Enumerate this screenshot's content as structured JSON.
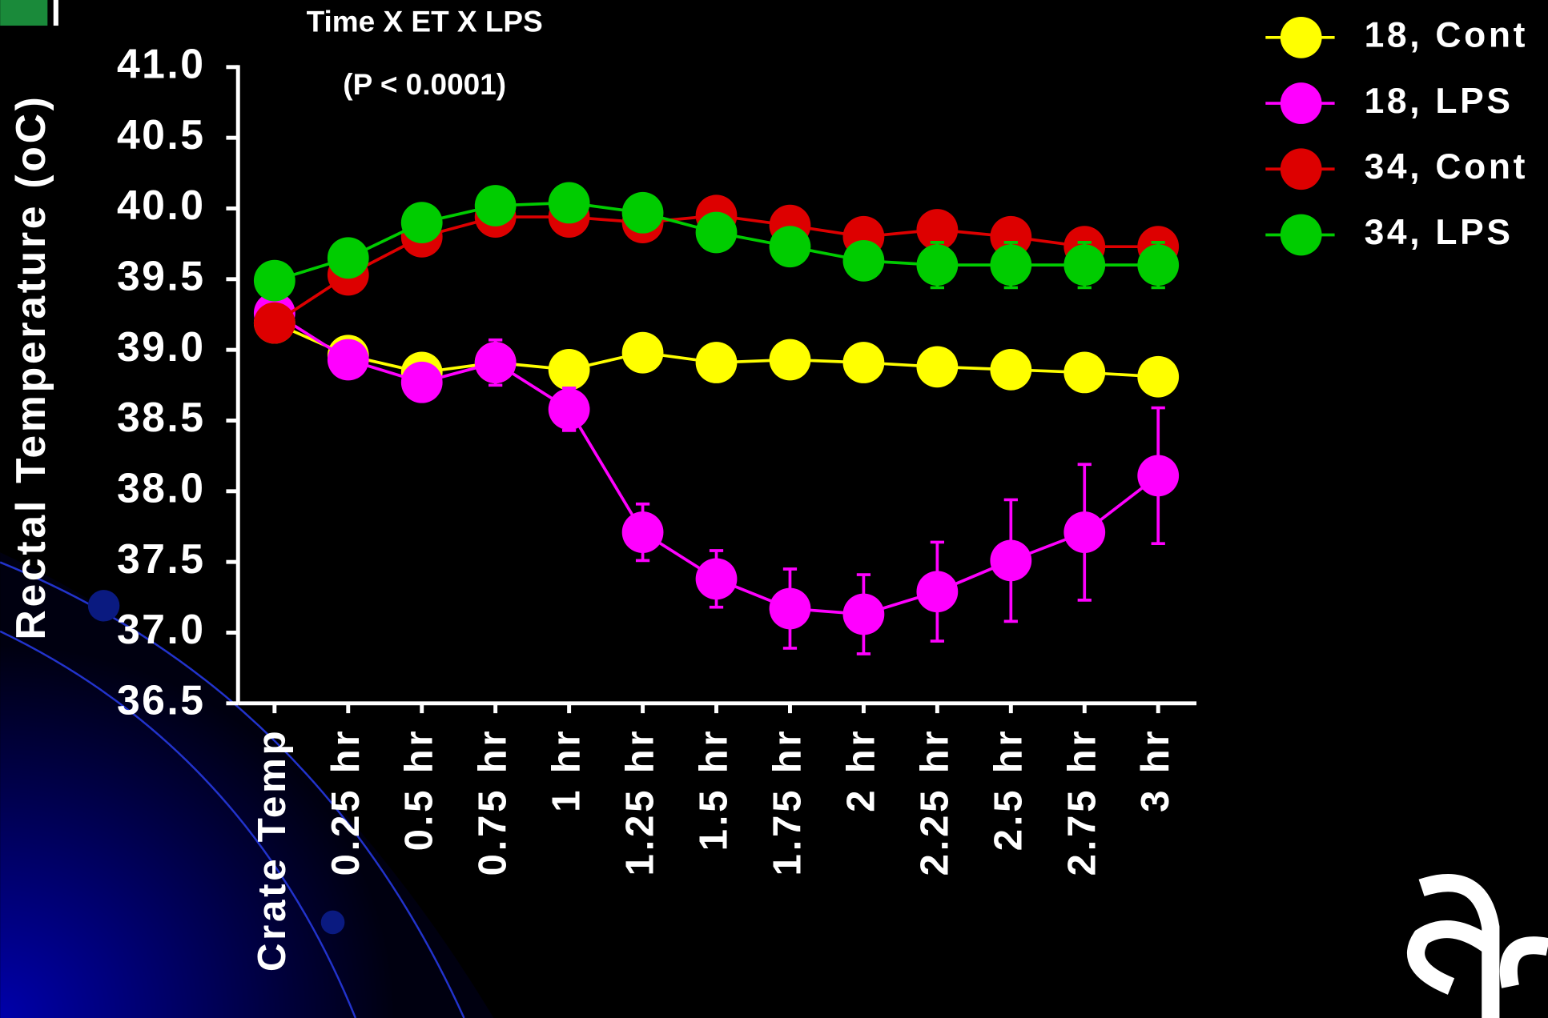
{
  "chart_data": {
    "type": "line",
    "title": "Time X ET X LPS",
    "annotation": "(P <  0.0001)",
    "y_label": "Rectal Temperature (oC)",
    "categories": [
      "Crate Temp",
      "0.25 hr",
      "0.5 hr",
      "0.75 hr",
      "1 hr",
      "1.25 hr",
      "1.5 hr",
      "1.75 hr",
      "2 hr",
      "2.25 hr",
      "2.5 hr",
      "2.75 hr",
      "3 hr"
    ],
    "ylim": [
      36.5,
      41.0
    ],
    "yticks": [
      {
        "value": 36.5,
        "label": "36.5"
      },
      {
        "value": 37,
        "label": "37.0"
      },
      {
        "value": 37.5,
        "label": "37.5"
      },
      {
        "value": 38,
        "label": "38.0"
      },
      {
        "value": 38.5,
        "label": "38.5"
      },
      {
        "value": 39,
        "label": "39.0"
      },
      {
        "value": 39.5,
        "label": "39.5"
      },
      {
        "value": 40,
        "label": "40.0"
      },
      {
        "value": 40.5,
        "label": "40.5"
      },
      {
        "value": 41,
        "label": "41.0"
      }
    ],
    "legend": "top-right",
    "series": [
      {
        "name": "18, Cont",
        "color": "#ffff00",
        "values": [
          39.19,
          38.96,
          38.84,
          38.91,
          38.86,
          38.98,
          38.91,
          38.93,
          38.91,
          38.88,
          38.86,
          38.84,
          38.81
        ],
        "errors": [
          0.12,
          0.05,
          0.05,
          0.05,
          0.05,
          0.05,
          0.05,
          0.05,
          0.05,
          0.06,
          0.08,
          0.05,
          0.05
        ]
      },
      {
        "name": "18, LPS",
        "color": "#ff00ff",
        "values": [
          39.26,
          38.93,
          38.77,
          38.91,
          38.58,
          37.71,
          37.38,
          37.17,
          37.13,
          37.29,
          37.51,
          37.71,
          38.11
        ],
        "errors": [
          0.05,
          0.05,
          0.05,
          0.16,
          0.15,
          0.2,
          0.2,
          0.28,
          0.28,
          0.35,
          0.43,
          0.48,
          0.48
        ]
      },
      {
        "name": "34, Cont",
        "color": "#dd0000",
        "values": [
          39.19,
          39.53,
          39.8,
          39.94,
          39.94,
          39.9,
          39.95,
          39.88,
          39.8,
          39.85,
          39.8,
          39.73,
          39.73
        ],
        "errors": [
          0.05,
          0.05,
          0.05,
          0.05,
          0.05,
          0.05,
          0.05,
          0.1,
          0.05,
          0.05,
          0.05,
          0.05,
          0.1
        ]
      },
      {
        "name": "34, LPS",
        "color": "#00cc00",
        "values": [
          39.49,
          39.65,
          39.9,
          40.02,
          40.04,
          39.97,
          39.83,
          39.73,
          39.63,
          39.6,
          39.6,
          39.6,
          39.6
        ],
        "errors": [
          0.1,
          0.1,
          0.05,
          0.05,
          0.05,
          0.05,
          0.05,
          0.08,
          0.08,
          0.16,
          0.16,
          0.16,
          0.16
        ]
      }
    ]
  }
}
